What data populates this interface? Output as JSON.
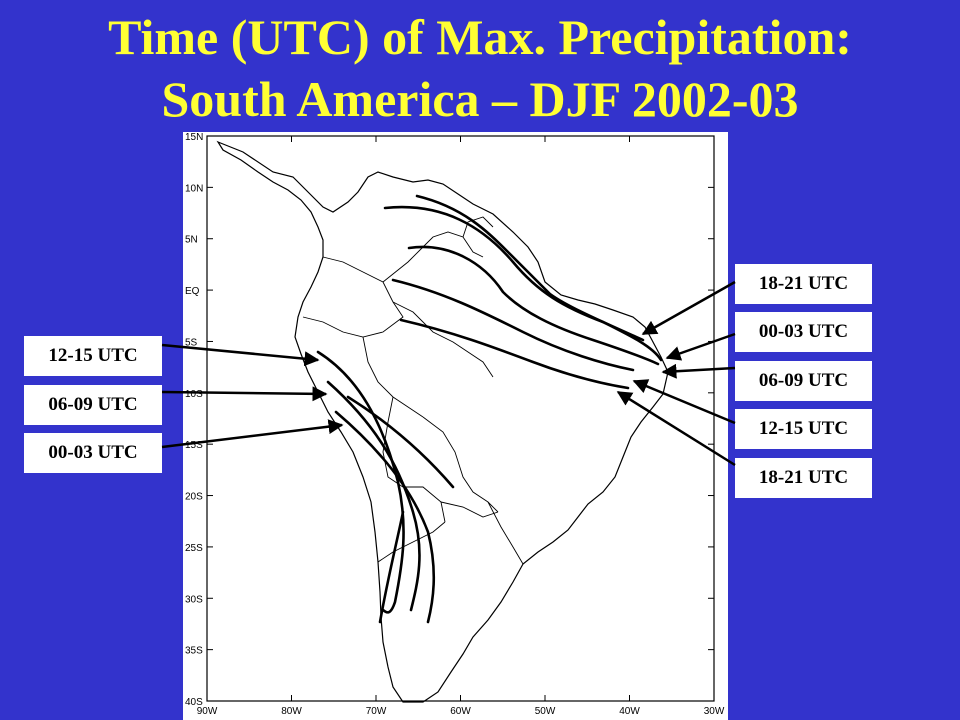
{
  "slide": {
    "title_line1": "Time (UTC) of Max. Precipitation:",
    "title_line2": "South America – DJF 2002-03",
    "background_color": "#3333cc",
    "title_color": "#ffff33"
  },
  "map": {
    "region": "South America",
    "lat_labels": [
      "15N",
      "10N",
      "5N",
      "EQ",
      "5S",
      "10S",
      "15S",
      "20S",
      "25S",
      "30S",
      "35S",
      "40S"
    ],
    "lon_labels": [
      "90W",
      "80W",
      "70W",
      "60W",
      "50W",
      "40W",
      "30W"
    ],
    "lat_range": [
      -40,
      15
    ],
    "lon_range": [
      -90,
      -30
    ]
  },
  "labels_left": [
    "12-15 UTC",
    "06-09 UTC",
    "00-03 UTC"
  ],
  "labels_right": [
    "18-21 UTC",
    "00-03 UTC",
    "06-09 UTC",
    "12-15 UTC",
    "18-21 UTC"
  ]
}
